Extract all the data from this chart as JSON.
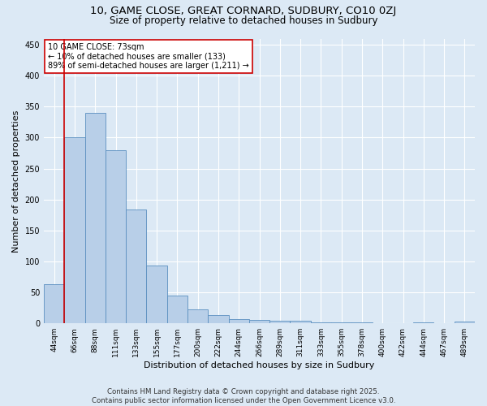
{
  "title1": "10, GAME CLOSE, GREAT CORNARD, SUDBURY, CO10 0ZJ",
  "title2": "Size of property relative to detached houses in Sudbury",
  "xlabel": "Distribution of detached houses by size in Sudbury",
  "ylabel": "Number of detached properties",
  "bar_labels": [
    "44sqm",
    "66sqm",
    "88sqm",
    "111sqm",
    "133sqm",
    "155sqm",
    "177sqm",
    "200sqm",
    "222sqm",
    "244sqm",
    "266sqm",
    "289sqm",
    "311sqm",
    "333sqm",
    "355sqm",
    "378sqm",
    "400sqm",
    "422sqm",
    "444sqm",
    "467sqm",
    "489sqm"
  ],
  "bar_values": [
    63,
    301,
    340,
    279,
    184,
    93,
    45,
    23,
    14,
    7,
    5,
    4,
    4,
    1,
    2,
    1,
    0,
    0,
    1,
    0,
    3
  ],
  "bar_color": "#b8cfe8",
  "bar_edge_color": "#5a8fc0",
  "bg_color": "#dce9f5",
  "grid_color": "#ffffff",
  "vline_color": "#cc0000",
  "annotation_text": "10 GAME CLOSE: 73sqm\n← 10% of detached houses are smaller (133)\n89% of semi-detached houses are larger (1,211) →",
  "annotation_box_color": "#ffffff",
  "annotation_border_color": "#cc0000",
  "ylim": [
    0,
    460
  ],
  "yticks": [
    0,
    50,
    100,
    150,
    200,
    250,
    300,
    350,
    400,
    450
  ],
  "footnote": "Contains HM Land Registry data © Crown copyright and database right 2025.\nContains public sector information licensed under the Open Government Licence v3.0."
}
